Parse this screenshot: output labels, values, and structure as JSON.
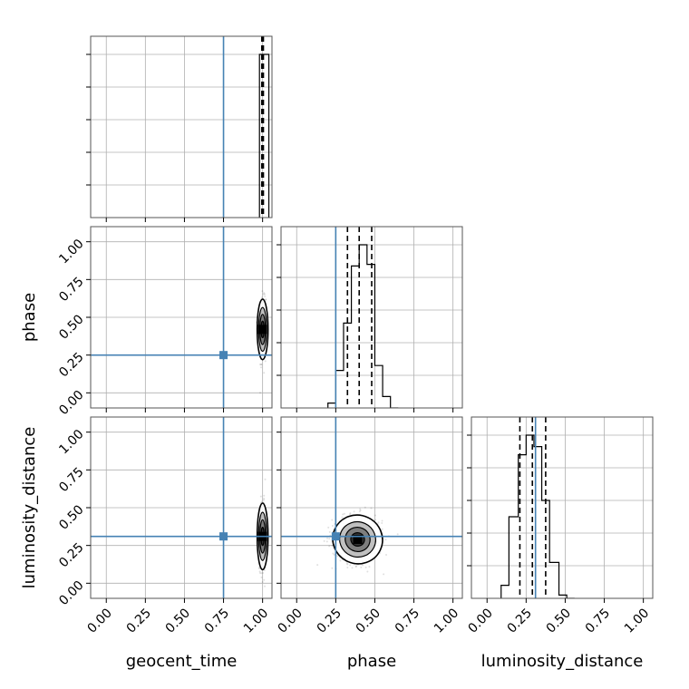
{
  "chart_data": {
    "type": "corner",
    "parameters": [
      "geocent_time",
      "phase",
      "luminosity_distance"
    ],
    "axis_labels": [
      "geocent_time",
      "phase",
      "luminosity_distance"
    ],
    "tick_labels": [
      "0.00",
      "0.25",
      "0.50",
      "0.75",
      "1.00"
    ],
    "tick_values": [
      0,
      0.25,
      0.5,
      0.75,
      1.0
    ],
    "xlim": [
      -0.1,
      1.06
    ],
    "ylim": [
      -0.1,
      1.1
    ],
    "grid": true,
    "truth_color": "#4682b4",
    "truths": {
      "geocent_time": 0.75,
      "phase": 0.25,
      "luminosity_distance": 0.31
    },
    "histograms": [
      {
        "parameter": "geocent_time",
        "bin_edges": [
          0.98,
          1.04
        ],
        "heights": [
          1.0
        ],
        "quantiles": [
          0.995,
          1.0,
          1.005
        ]
      },
      {
        "parameter": "phase",
        "bin_edges": [
          0.2,
          0.25,
          0.3,
          0.35,
          0.4,
          0.45,
          0.5,
          0.55,
          0.6,
          0.65
        ],
        "heights": [
          0.03,
          0.23,
          0.52,
          0.87,
          1.0,
          0.88,
          0.26,
          0.07,
          0.0
        ],
        "quantiles": [
          0.325,
          0.4,
          0.48
        ]
      },
      {
        "parameter": "luminosity_distance",
        "bin_edges": [
          0.09,
          0.14,
          0.2,
          0.25,
          0.3,
          0.35,
          0.4,
          0.46,
          0.51,
          0.56
        ],
        "heights": [
          0.08,
          0.5,
          0.88,
          1.0,
          0.93,
          0.6,
          0.22,
          0.02,
          0.0
        ],
        "quantiles": [
          0.21,
          0.29,
          0.375
        ]
      }
    ],
    "scatter_panels": [
      {
        "x": "geocent_time",
        "y": "phase",
        "center": [
          1.0,
          0.42
        ],
        "spread": [
          0.01,
          0.1
        ]
      },
      {
        "x": "geocent_time",
        "y": "luminosity_distance",
        "center": [
          1.0,
          0.31
        ],
        "spread": [
          0.01,
          0.11
        ]
      },
      {
        "x": "phase",
        "y": "luminosity_distance",
        "center": [
          0.39,
          0.29
        ],
        "spread": [
          0.08,
          0.08
        ]
      }
    ]
  }
}
